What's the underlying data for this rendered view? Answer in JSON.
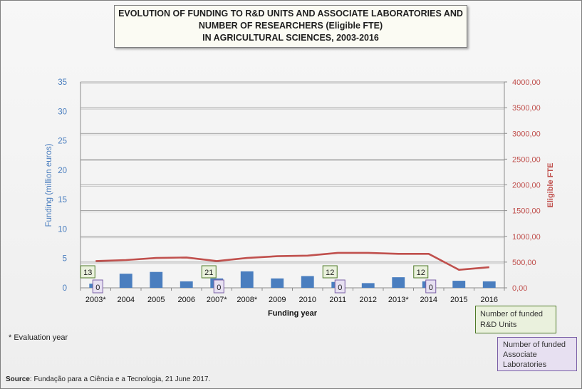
{
  "title_lines": [
    "EVOLUTION OF FUNDING TO R&D UNITS AND ASSOCIATE LABORATORIES AND",
    "NUMBER OF RESEARCHERS (Eligible FTE)",
    "IN AGRICULTURAL SCIENCES, 2003-2016"
  ],
  "footnote": "* Evaluation year",
  "source_label": "Source",
  "source_text": ": Fundação para a Ciência e a Tecnologia, 21 June 2017.",
  "legend": {
    "units": "Number of funded R&D Units",
    "labs": "Number of funded Associate Laboratories"
  },
  "colors": {
    "bar": "#4a7ebf",
    "line": "#c0504d",
    "left_axis_text": "#4a7ebf",
    "right_axis_text": "#c0504d",
    "units_box_border": "#4f7a28",
    "units_box_fill": "#eaf1dd",
    "labs_box_border": "#7a5fa6",
    "labs_box_fill": "#e7e0f1"
  },
  "chart_data": {
    "type": "bar",
    "categories": [
      "2003*",
      "2004",
      "2005",
      "2006",
      "2007*",
      "2008*",
      "2009",
      "2010",
      "2011",
      "2012",
      "2013*",
      "2014",
      "2015",
      "2016"
    ],
    "xlabel": "Funding year",
    "ylabel": "Funding (million euros)",
    "y2label": "Eligible FTE",
    "ylim": [
      0,
      35
    ],
    "y2lim": [
      0,
      4000
    ],
    "yticks": [
      "0",
      "5",
      "10",
      "15",
      "20",
      "25",
      "30",
      "35"
    ],
    "y2ticks": [
      "0,00",
      "500,00",
      "1000,00",
      "1500,00",
      "2000,00",
      "2500,00",
      "3000,00",
      "3500,00",
      "4000,00"
    ],
    "grid": true,
    "series": [
      {
        "type": "bar",
        "axis": "left",
        "values": [
          0.7,
          2.4,
          2.7,
          1.1,
          1.6,
          2.8,
          1.6,
          2.0,
          1.0,
          0.8,
          1.8,
          1.1,
          1.2,
          1.1
        ]
      },
      {
        "type": "line",
        "axis": "right",
        "values": [
          520,
          540,
          580,
          590,
          520,
          580,
          615,
          625,
          680,
          680,
          660,
          660,
          350,
          400
        ]
      }
    ],
    "annotations": [
      {
        "category": "2003*",
        "units": "13",
        "labs": "0"
      },
      {
        "category": "2007*",
        "units": "21",
        "labs": "0"
      },
      {
        "category": "2011",
        "units": "12",
        "labs": "0"
      },
      {
        "category": "2014",
        "units": "12",
        "labs": "0"
      }
    ]
  }
}
